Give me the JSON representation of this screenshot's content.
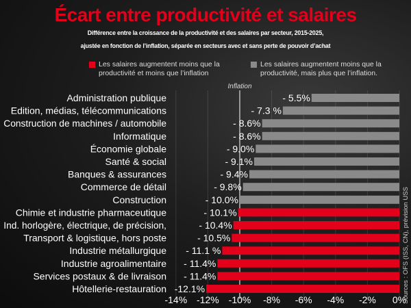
{
  "title": "Écart entre productivité et salaires",
  "subtitle_line1": "Différence entre la croissance de la productivité et des salaires par secteur, 2015-2025,",
  "subtitle_line2": "ajustée en fonction de l’inflation, séparée en secteurs avec et sans perte de pouvoir d’achat",
  "legend": [
    {
      "label_line1": "Les salaires augmentent moins que la",
      "label_line2": "productivité et moins que l’inflation",
      "color": "#e3001b"
    },
    {
      "label_line1": "Les salaires augmentent moins que la",
      "label_line2": "productivité, mais plus que l’inflation.",
      "color": "#8a8a8a"
    }
  ],
  "source": "Sources : OFS (ISS, CN), prévision USS",
  "chart_data": {
    "type": "bar",
    "orientation": "horizontal",
    "xlim": [
      -14,
      0
    ],
    "x_ticks": [
      "-14%",
      "-12%",
      "-10%",
      "-8%",
      "-6%",
      "-4%",
      "-2%",
      "0%"
    ],
    "x_tick_values": [
      -14,
      -12,
      -10,
      -8,
      -6,
      -4,
      -2,
      0
    ],
    "grid": true,
    "reference_line": {
      "label": "Inflation",
      "value": -10
    },
    "categories": [
      "Administration publique",
      "Edition, médias, télécommunications",
      "Construction de machines / automobile",
      "Informatique",
      "Économie globale",
      "Santé & social",
      "Banques & assurances",
      "Commerce de détail",
      "Construction",
      "Chimie et industrie pharmaceutique",
      "Ind. horlogère, électrique, de précision,",
      "Transport & logistique, hors poste",
      "Industrie métallurgique",
      "Industrie agroalimentaire",
      "Services postaux & de livraison",
      "Hôtellerie-restauration"
    ],
    "values": [
      -5.5,
      -7.3,
      -8.6,
      -8.6,
      -9.0,
      -9.1,
      -9.4,
      -9.8,
      -10.0,
      -10.1,
      -10.4,
      -10.5,
      -11.1,
      -11.4,
      -11.4,
      -12.1
    ],
    "value_labels": [
      "- 5.5%",
      "- 7.3 %",
      "- 8.6%",
      "- 8.6%",
      "- 9.0%",
      "- 9.1%",
      "- 9.4%",
      "- 9.8%",
      "- 10.0%",
      "- 10.1%",
      "- 10.4%",
      "- 10.5%",
      "- 11.1 %",
      "- 11.4%",
      "- 11.4%",
      "-12.1%"
    ],
    "groups": [
      "above",
      "above",
      "above",
      "above",
      "above",
      "above",
      "above",
      "above",
      "above",
      "below",
      "below",
      "below",
      "below",
      "below",
      "below",
      "below"
    ],
    "colors": {
      "above": "#8a8a8a",
      "below": "#e3001b"
    }
  }
}
